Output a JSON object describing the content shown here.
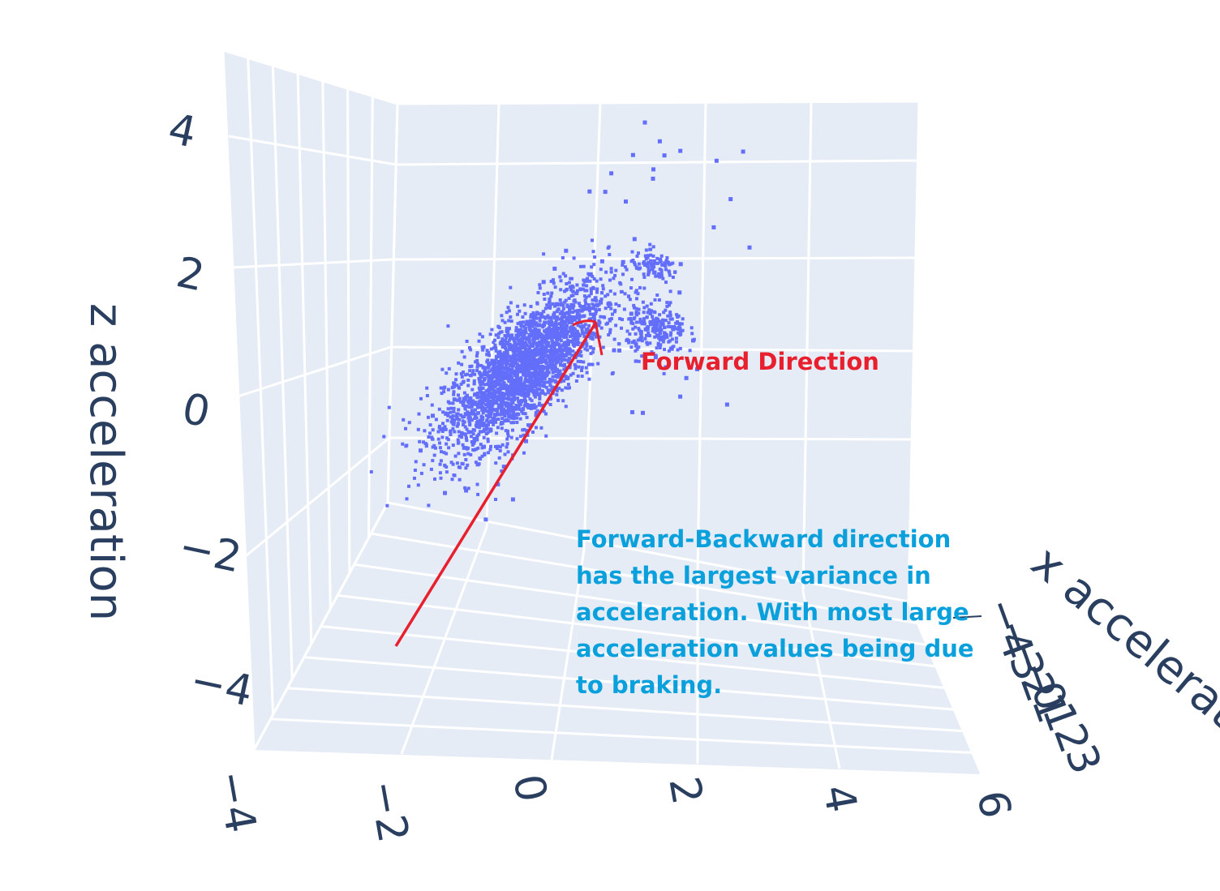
{
  "chart_data": {
    "type": "scatter3d",
    "axes": {
      "x": {
        "title": "x acceleration",
        "tick_labels": [
          "−4",
          "−3",
          "−2",
          "−1",
          "0",
          "1",
          "2",
          "3"
        ]
      },
      "y": {
        "title": "",
        "tick_labels": [
          "−4",
          "−2",
          "0",
          "2",
          "4",
          "6"
        ],
        "range": [
          -4,
          6
        ]
      },
      "z": {
        "title": "z acceleration",
        "tick_labels": [
          "4",
          "2",
          "0",
          "−2",
          "−4"
        ],
        "range": [
          -5,
          5
        ]
      }
    },
    "grid": true,
    "marker_color": "#636efa",
    "background_color": "#e5ecf6",
    "dense_cluster": {
      "y_center": -1.2,
      "z_center": -0.8,
      "y_spread": 0.75,
      "z_spread": 0.95,
      "correlation": 0.75,
      "count": 2600
    },
    "sparse_points": [
      [
        0.9,
        4.6
      ],
      [
        1.2,
        4.2
      ],
      [
        1.6,
        4.0
      ],
      [
        2.8,
        4.0
      ],
      [
        0.7,
        3.9
      ],
      [
        1.3,
        3.9
      ],
      [
        2.3,
        3.8
      ],
      [
        1.1,
        3.6
      ],
      [
        0.3,
        3.5
      ],
      [
        1.1,
        3.4
      ],
      [
        -0.1,
        3.1
      ],
      [
        0.2,
        3.1
      ],
      [
        2.6,
        3.0
      ],
      [
        0.6,
        2.9
      ],
      [
        2.3,
        2.4
      ],
      [
        3.0,
        2.0
      ],
      [
        -0.5,
        1.8
      ],
      [
        0.8,
        2.1
      ],
      [
        0.2,
        1.6
      ],
      [
        0.6,
        1.6
      ],
      [
        1.4,
        1.6
      ],
      [
        1.7,
        1.6
      ],
      [
        1.2,
        1.4
      ],
      [
        -0.7,
        1.4
      ],
      [
        -0.9,
        1.1
      ],
      [
        1.7,
        1.0
      ],
      [
        0.1,
        0.8
      ],
      [
        -0.1,
        0.6
      ],
      [
        0.8,
        0.5
      ],
      [
        2.0,
        0.0
      ],
      [
        1.6,
        -0.2
      ],
      [
        1.3,
        -0.4
      ],
      [
        0.5,
        -0.3
      ],
      [
        0.6,
        -0.3
      ],
      [
        1.2,
        0.3
      ],
      [
        1.0,
        0.1
      ],
      [
        1.5,
        -0.6
      ],
      [
        2.1,
        -0.6
      ],
      [
        1.9,
        -0.8
      ],
      [
        1.8,
        -1.2
      ],
      [
        2.7,
        -1.3
      ],
      [
        0.9,
        -1.6
      ],
      [
        1.1,
        -1.6
      ],
      [
        -1.6,
        -3.4
      ],
      [
        -2.2,
        -3.6
      ],
      [
        -3.1,
        -2.8
      ],
      [
        -2.6,
        -3.7
      ],
      [
        -1.8,
        -4.2
      ],
      [
        -2.0,
        -3.0
      ],
      [
        -2.5,
        -1.6
      ],
      [
        -2.9,
        -2.0
      ],
      [
        -2.2,
        -2.3
      ],
      [
        -1.9,
        -2.6
      ],
      [
        -1.5,
        -3.0
      ],
      [
        -1.3,
        -3.7
      ],
      [
        -1.1,
        -2.4
      ]
    ],
    "annotations": {
      "arrow_label": "Forward Direction",
      "note_lines": [
        "Forward-Backward direction",
        "has the largest variance in",
        "acceleration. With most large",
        "acceleration values being due",
        "to braking."
      ]
    },
    "arrow_color": "#e8202e"
  }
}
